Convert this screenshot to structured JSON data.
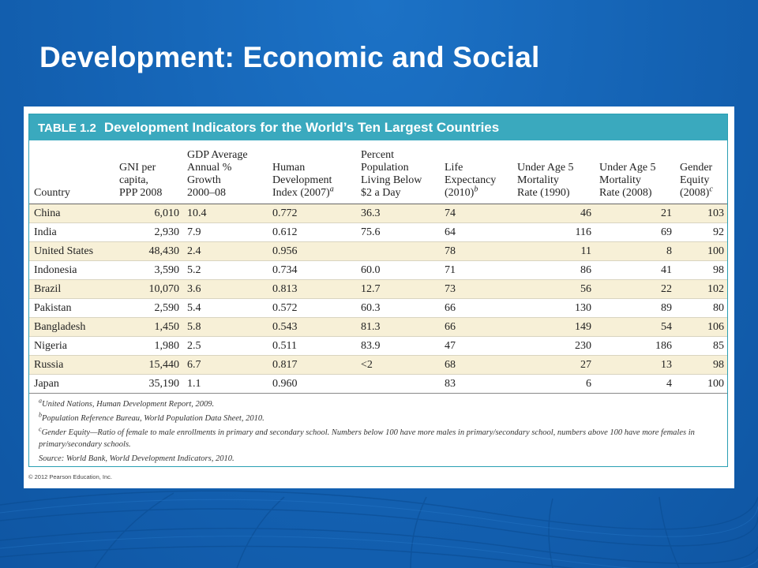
{
  "slide": {
    "title": "Development: Economic and Social"
  },
  "table": {
    "number": "TABLE 1.2",
    "title": "Development Indicators for the World’s Ten Largest Countries",
    "columns": [
      {
        "lines": [
          "Country"
        ],
        "sup": ""
      },
      {
        "lines": [
          "GNI per",
          "capita,",
          "PPP 2008"
        ],
        "sup": ""
      },
      {
        "lines": [
          "GDP Average",
          "Annual %",
          "Growth",
          "2000–08"
        ],
        "sup": ""
      },
      {
        "lines": [
          "Human",
          "Development",
          "Index (2007)"
        ],
        "sup": "a"
      },
      {
        "lines": [
          "Percent",
          "Population",
          "Living Below",
          "$2 a Day"
        ],
        "sup": ""
      },
      {
        "lines": [
          "Life",
          "Expectancy",
          "(2010)"
        ],
        "sup": "b"
      },
      {
        "lines": [
          "Under Age 5",
          "Mortality",
          "Rate (1990)"
        ],
        "sup": ""
      },
      {
        "lines": [
          "Under Age 5",
          "Mortality",
          "Rate (2008)"
        ],
        "sup": ""
      },
      {
        "lines": [
          "Gender",
          "Equity",
          "(2008)"
        ],
        "sup": "c"
      }
    ],
    "rows": [
      [
        "China",
        "6,010",
        "10.4",
        "0.772",
        "36.3",
        "74",
        "46",
        "21",
        "103"
      ],
      [
        "India",
        "2,930",
        "7.9",
        "0.612",
        "75.6",
        "64",
        "116",
        "69",
        "92"
      ],
      [
        "United States",
        "48,430",
        "2.4",
        "0.956",
        "",
        "78",
        "11",
        "8",
        "100"
      ],
      [
        "Indonesia",
        "3,590",
        "5.2",
        "0.734",
        "60.0",
        "71",
        "86",
        "41",
        "98"
      ],
      [
        "Brazil",
        "10,070",
        "3.6",
        "0.813",
        "12.7",
        "73",
        "56",
        "22",
        "102"
      ],
      [
        "Pakistan",
        "2,590",
        "5.4",
        "0.572",
        "60.3",
        "66",
        "130",
        "89",
        "80"
      ],
      [
        "Bangladesh",
        "1,450",
        "5.8",
        "0.543",
        "81.3",
        "66",
        "149",
        "54",
        "106"
      ],
      [
        "Nigeria",
        "1,980",
        "2.5",
        "0.511",
        "83.9",
        "47",
        "230",
        "186",
        "85"
      ],
      [
        "Russia",
        "15,440",
        "6.7",
        "0.817",
        "<2",
        "68",
        "27",
        "13",
        "98"
      ],
      [
        "Japan",
        "35,190",
        "1.1",
        "0.960",
        "",
        "83",
        "6",
        "4",
        "100"
      ]
    ],
    "footnotes": [
      {
        "mark": "a",
        "text": "United Nations, Human Development Report, 2009."
      },
      {
        "mark": "b",
        "text": "Population Reference Bureau, World Population Data Sheet, 2010."
      },
      {
        "mark": "c",
        "text": "Gender Equity—Ratio of female to male enrollments in primary and secondary school. Numbers below 100 have more males in primary/secondary school, numbers above 100 have more females in primary/secondary schools."
      },
      {
        "mark": "",
        "text": "Source: World Bank, World Development Indicators, 2010."
      }
    ],
    "copyright": "© 2012 Pearson Education, Inc."
  },
  "colors": {
    "background": "#1565b8",
    "header": "#3aa9be",
    "stripe": "#f7f0d7"
  }
}
